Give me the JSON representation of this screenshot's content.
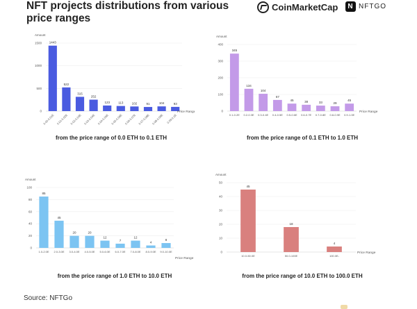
{
  "header": {
    "title": "NFT projects distributions from various price ranges",
    "logos": [
      {
        "name": "CoinMarketCap",
        "icon": "coinmarketcap-logo-icon"
      },
      {
        "name": "NFTGO",
        "icon": "nftgo-logo-icon"
      }
    ]
  },
  "source": "Source: NFTGo",
  "chart_data": [
    {
      "type": "bar",
      "title": "from the price range of 0.0 ETH to 0.1 ETH",
      "xlabel": "Price Range",
      "ylabel": "Amount",
      "color": "#4a5be0",
      "ylim": [
        0,
        1500
      ],
      "yticks": [
        0,
        500,
        1000,
        1500
      ],
      "grid": true,
      "rotated_labels": true,
      "categories": [
        "0.00-0.01E",
        "0.01-0.02E",
        "0.02-0.03E",
        "0.03-0.04E",
        "0.04-0.05E",
        "0.05-0.06E",
        "0.06-0.07E",
        "0.07-0.08E",
        "0.08-0.09E",
        "0.09-0.1E"
      ],
      "values": [
        1443,
        522,
        315,
        252,
        123,
        113,
        102,
        91,
        104,
        93
      ]
    },
    {
      "type": "bar",
      "title": "from the price range of 0.1 ETH to 1.0 ETH",
      "xlabel": "Price Range",
      "ylabel": "Amount",
      "color": "#c39ae8",
      "ylim": [
        0,
        400
      ],
      "yticks": [
        0,
        100,
        200,
        300,
        400
      ],
      "grid": true,
      "rotated_labels": false,
      "categories": [
        "0.1-0.2E",
        "0.2-0.3E",
        "0.3-0.4E",
        "0.4-0.5E",
        "0.5-0.6E",
        "0.6-0.7E",
        "0.7-0.8E",
        "0.8-0.9E",
        "0.9-1.0E"
      ],
      "values": [
        345,
        134,
        104,
        67,
        45,
        38,
        33,
        29,
        45
      ]
    },
    {
      "type": "bar",
      "title": "from the price range of 1.0 ETH to 10.0 ETH",
      "xlabel": "Price Range",
      "ylabel": "Amount",
      "color": "#7cc4f2",
      "ylim": [
        0,
        100
      ],
      "yticks": [
        0,
        20,
        40,
        60,
        80,
        100
      ],
      "grid": true,
      "rotated_labels": false,
      "categories": [
        "1.0-2.0E",
        "2.0-3.0E",
        "3.0-4.0E",
        "4.0-5.0E",
        "5.0-6.0E",
        "6.0-7.0E",
        "7.0-8.0E",
        "8.0-9.0E",
        "9.0-10.0E"
      ],
      "values": [
        85,
        45,
        20,
        20,
        12,
        7,
        12,
        4,
        8
      ]
    },
    {
      "type": "bar",
      "title": "from the price range of 10.0 ETH to 100.0 ETH",
      "xlabel": "Price Range",
      "ylabel": "Amount",
      "color": "#d9807e",
      "ylim": [
        0,
        50
      ],
      "yticks": [
        0,
        10,
        20,
        30,
        40,
        50
      ],
      "grid": true,
      "rotated_labels": false,
      "categories": [
        "10.0-50.0E",
        "50.0-100E",
        "100.0E-"
      ],
      "values": [
        45,
        18,
        4
      ]
    }
  ]
}
